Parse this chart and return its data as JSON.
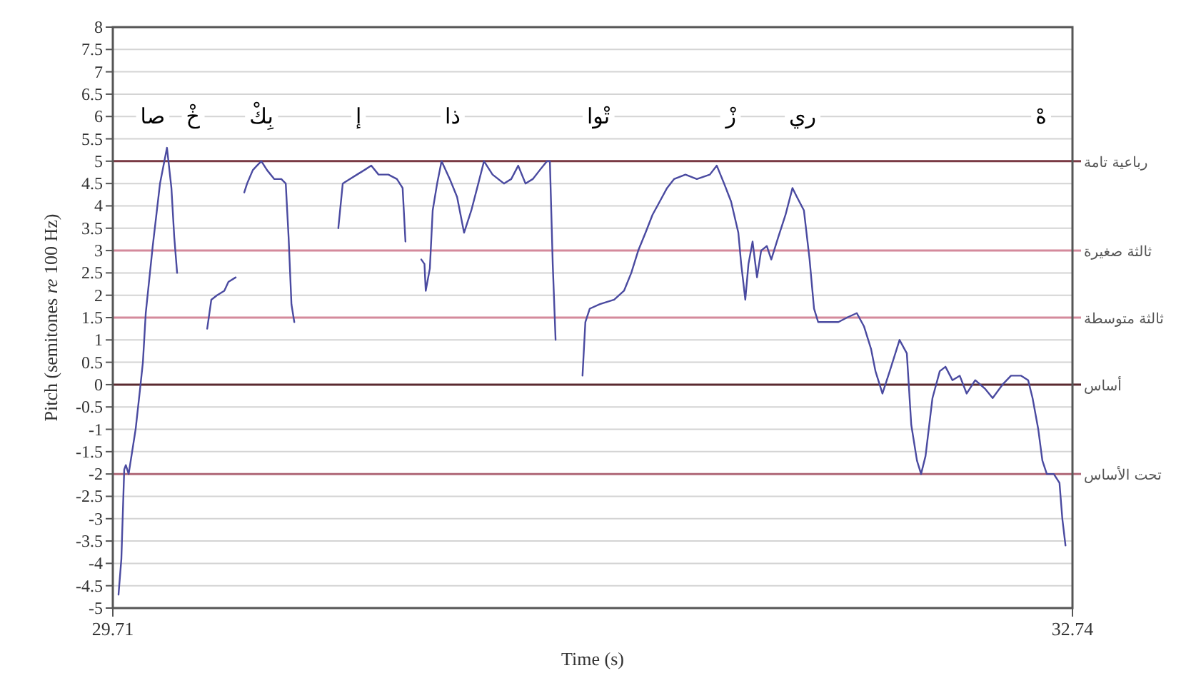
{
  "chart_data": {
    "type": "line",
    "xlabel": "Time (s)",
    "ylabel": "Pitch (semitones *re* 100 Hz)",
    "xlim": [
      29.71,
      32.74
    ],
    "xticks": [
      29.71,
      32.74
    ],
    "ylim": [
      -5,
      8
    ],
    "yticks": [
      -5,
      -4.5,
      -4,
      -3.5,
      -3,
      -2.5,
      -2,
      -1.5,
      -1,
      -0.5,
      0,
      0.5,
      1,
      1.5,
      2,
      2.5,
      3,
      3.5,
      4,
      4.5,
      5,
      5.5,
      6,
      6.5,
      7,
      7.5,
      8
    ],
    "grid": "y",
    "series": [
      {
        "color": "#4a4aa0",
        "x": [
          29.728,
          29.737,
          29.746,
          29.751,
          29.76,
          29.782,
          29.796,
          29.805,
          29.814,
          29.836,
          29.859,
          29.881,
          29.895,
          29.904,
          29.913
        ],
        "values": [
          -4.7,
          -3.9,
          -1.9,
          -1.8,
          -2.0,
          -1.0,
          -0.1,
          0.5,
          1.6,
          3.1,
          4.5,
          5.3,
          4.4,
          3.3,
          2.5
        ]
      },
      {
        "color": "#4a4aa0",
        "x": [
          30.008,
          30.021,
          30.039,
          30.062,
          30.075,
          30.098
        ],
        "values": [
          1.25,
          1.9,
          2.0,
          2.1,
          2.3,
          2.4
        ]
      },
      {
        "color": "#4a4aa0",
        "x": [
          30.125,
          30.134,
          30.152,
          30.165,
          30.179,
          30.197,
          30.22,
          30.242,
          30.256,
          30.265,
          30.274,
          30.283
        ],
        "values": [
          4.3,
          4.5,
          4.8,
          4.9,
          5.0,
          4.8,
          4.6,
          4.6,
          4.5,
          3.3,
          1.8,
          1.4
        ]
      },
      {
        "color": "#4a4aa0",
        "x": [
          30.422,
          30.436,
          30.458,
          30.481,
          30.504,
          30.526,
          30.549,
          30.58,
          30.607,
          30.625,
          30.634
        ],
        "values": [
          3.5,
          4.5,
          4.6,
          4.7,
          4.8,
          4.9,
          4.7,
          4.7,
          4.6,
          4.4,
          3.2
        ]
      },
      {
        "color": "#4a4aa0",
        "x": [
          30.684,
          30.694,
          30.698,
          30.711,
          30.72,
          30.734,
          30.748,
          30.774,
          30.797,
          30.819,
          30.842,
          30.864,
          30.882,
          30.909,
          30.945,
          30.968,
          30.99,
          31.013,
          31.036,
          31.058,
          31.081,
          31.09,
          31.099,
          31.108
        ],
        "values": [
          2.8,
          2.7,
          2.1,
          2.6,
          3.9,
          4.5,
          5.0,
          4.6,
          4.2,
          3.4,
          3.9,
          4.5,
          5.0,
          4.7,
          4.5,
          4.6,
          4.9,
          4.5,
          4.6,
          4.8,
          5.0,
          5.0,
          2.7,
          1.0
        ]
      },
      {
        "color": "#4a4aa0",
        "x": [
          31.193,
          31.202,
          31.216,
          31.248,
          31.293,
          31.324,
          31.347,
          31.369,
          31.392,
          31.414,
          31.437,
          31.46,
          31.482,
          31.518,
          31.554,
          31.595,
          31.617,
          31.64,
          31.662,
          31.685,
          31.694,
          31.707,
          31.717,
          31.73,
          31.744,
          31.757,
          31.775,
          31.789,
          31.811,
          31.834,
          31.856,
          31.87,
          31.892,
          31.91,
          31.924,
          31.937,
          31.969,
          32.001,
          32.028,
          32.059,
          32.082,
          32.104,
          32.118,
          32.14,
          32.163,
          32.194,
          32.217,
          32.231,
          32.249,
          32.262,
          32.276,
          32.298,
          32.321,
          32.339,
          32.361,
          32.384,
          32.406,
          32.433,
          32.465,
          32.488,
          32.519,
          32.546,
          32.578,
          32.6,
          32.614,
          32.632,
          32.645,
          32.659,
          32.681,
          32.699,
          32.708,
          32.718
        ],
        "values": [
          0.2,
          1.4,
          1.7,
          1.8,
          1.9,
          2.1,
          2.5,
          3.0,
          3.4,
          3.8,
          4.1,
          4.4,
          4.6,
          4.7,
          4.6,
          4.7,
          4.9,
          4.5,
          4.1,
          3.4,
          2.7,
          1.9,
          2.7,
          3.2,
          2.4,
          3.0,
          3.1,
          2.8,
          3.3,
          3.8,
          4.4,
          4.2,
          3.9,
          2.8,
          1.7,
          1.4,
          1.4,
          1.4,
          1.5,
          1.6,
          1.3,
          0.8,
          0.3,
          -0.2,
          0.3,
          1.0,
          0.7,
          -0.9,
          -1.7,
          -2.0,
          -1.6,
          -0.3,
          0.3,
          0.4,
          0.1,
          0.2,
          -0.2,
          0.1,
          -0.1,
          -0.3,
          0.0,
          0.2,
          0.2,
          0.1,
          -0.3,
          -1.0,
          -1.7,
          -2.0,
          -2.0,
          -2.2,
          -3.0,
          -3.6
        ]
      }
    ],
    "ref_lines": [
      {
        "axis": "y",
        "value": 5,
        "label": "رباعية تامة",
        "color": "#7a3a44"
      },
      {
        "axis": "y",
        "value": 3,
        "label": "ثالثة صغيرة",
        "color": "#d48a9c"
      },
      {
        "axis": "y",
        "value": 1.5,
        "label": "ثالثة متوسطة",
        "color": "#d48a9c"
      },
      {
        "axis": "y",
        "value": 0,
        "label": "أساس",
        "color": "#5a2a30"
      },
      {
        "axis": "y",
        "value": -2,
        "label": "تحت الأساس",
        "color": "#b06878"
      }
    ],
    "annotations": [
      {
        "text": "صا",
        "x": 29.836,
        "y": 6
      },
      {
        "text": "خْ",
        "x": 29.963,
        "y": 6
      },
      {
        "text": "بِكْ",
        "x": 30.179,
        "y": 6
      },
      {
        "text": "إ",
        "x": 30.486,
        "y": 6
      },
      {
        "text": "ذا",
        "x": 30.783,
        "y": 6
      },
      {
        "text": "تْوا",
        "x": 31.243,
        "y": 6
      },
      {
        "text": "زْ",
        "x": 31.662,
        "y": 6
      },
      {
        "text": "ري",
        "x": 31.888,
        "y": 6
      },
      {
        "text": "هْ",
        "x": 32.641,
        "y": 6
      }
    ]
  }
}
